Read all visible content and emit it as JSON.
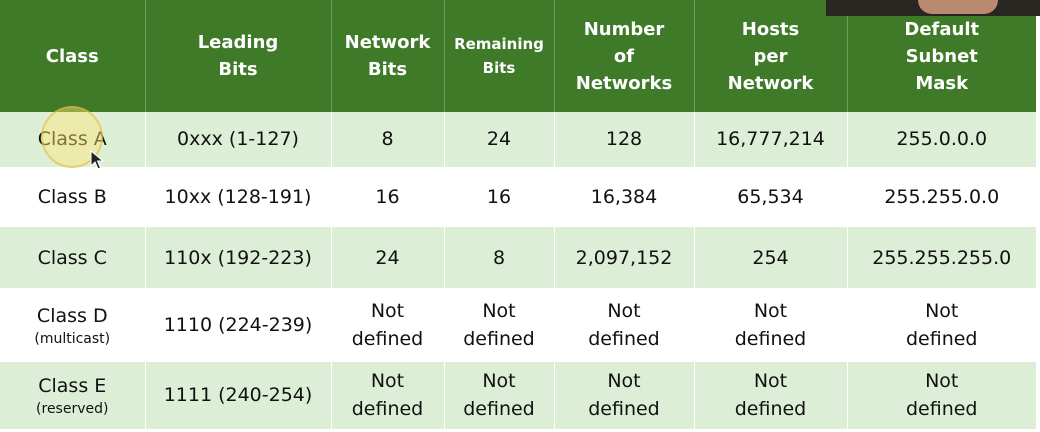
{
  "table": {
    "headers": [
      [
        "Class"
      ],
      [
        "Leading",
        "Bits"
      ],
      [
        "Network",
        "Bits"
      ],
      [
        "Remaining",
        "Bits"
      ],
      [
        "Number",
        "of",
        "Networks"
      ],
      [
        "Hosts",
        "per",
        "Network"
      ],
      [
        "Default",
        "Subnet",
        "Mask"
      ]
    ],
    "rows": [
      {
        "class_name": "Class A",
        "class_note": "",
        "leading_bits": "0xxx (1-127)",
        "network_bits": [
          "8"
        ],
        "remaining_bits": [
          "24"
        ],
        "num_networks": [
          "128"
        ],
        "hosts_per_network": [
          "16,777,214"
        ],
        "subnet_mask": [
          "255.0.0.0"
        ]
      },
      {
        "class_name": "Class B",
        "class_note": "",
        "leading_bits": "10xx (128-191)",
        "network_bits": [
          "16"
        ],
        "remaining_bits": [
          "16"
        ],
        "num_networks": [
          "16,384"
        ],
        "hosts_per_network": [
          "65,534"
        ],
        "subnet_mask": [
          "255.255.0.0"
        ]
      },
      {
        "class_name": "Class C",
        "class_note": "",
        "leading_bits": "110x (192-223)",
        "network_bits": [
          "24"
        ],
        "remaining_bits": [
          "8"
        ],
        "num_networks": [
          "2,097,152"
        ],
        "hosts_per_network": [
          "254"
        ],
        "subnet_mask": [
          "255.255.255.0"
        ]
      },
      {
        "class_name": "Class D",
        "class_note": "(multicast)",
        "leading_bits": "1110 (224-239)",
        "network_bits": [
          "Not",
          "defined"
        ],
        "remaining_bits": [
          "Not",
          "defined"
        ],
        "num_networks": [
          "Not",
          "defined"
        ],
        "hosts_per_network": [
          "Not",
          "defined"
        ],
        "subnet_mask": [
          "Not",
          "defined"
        ]
      },
      {
        "class_name": "Class E",
        "class_note": "(reserved)",
        "leading_bits": "1111 (240-254)",
        "network_bits": [
          "Not",
          "defined"
        ],
        "remaining_bits": [
          "Not",
          "defined"
        ],
        "num_networks": [
          "Not",
          "defined"
        ],
        "hosts_per_network": [
          "Not",
          "defined"
        ],
        "subnet_mask": [
          "Not",
          "defined"
        ]
      }
    ]
  },
  "colors": {
    "header_bg": "#3e7a27",
    "header_text": "#ffffff",
    "stripe_bg": "#ddeed6",
    "row_bg": "#ffffff"
  },
  "overlay": {
    "cursor": "pointer-arrow-icon",
    "highlight": "cursor-highlight-ring"
  }
}
